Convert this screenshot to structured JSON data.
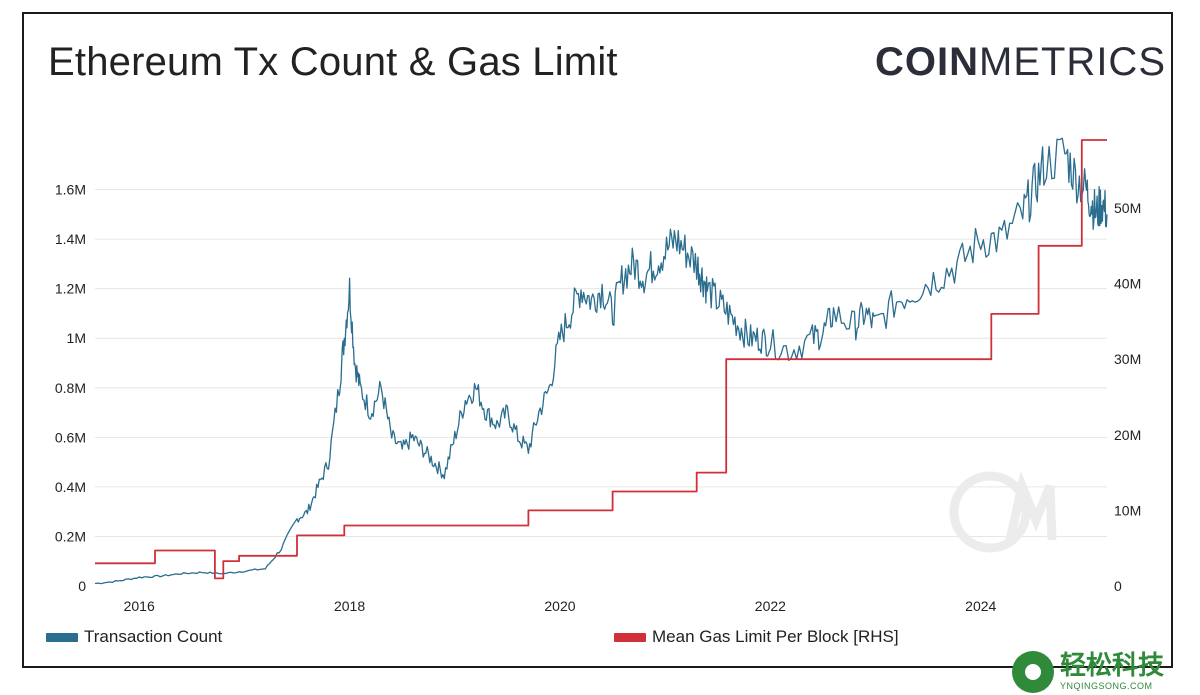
{
  "title": "Ethereum Tx Count & Gas Limit",
  "logo": {
    "bold": "COIN",
    "light": "METRICS"
  },
  "badge": {
    "main": "轻松科技",
    "sub": "YNQINGSONG.COM"
  },
  "colors": {
    "tx": "#2b6d8e",
    "gas": "#d0303a",
    "grid": "#e6e6e6",
    "text": "#222222"
  },
  "chart_data": {
    "type": "line",
    "title": "Ethereum Tx Count & Gas Limit",
    "xlabel": "",
    "ylabel": "",
    "x_ticks": [
      "2016",
      "2018",
      "2020",
      "2022",
      "2024"
    ],
    "y_left_ticks": [
      "0",
      "0.2M",
      "0.4M",
      "0.6M",
      "0.8M",
      "1M",
      "1.2M",
      "1.4M",
      "1.6M"
    ],
    "y_right_ticks": [
      "0",
      "10M",
      "20M",
      "30M",
      "40M",
      "50M"
    ],
    "ylim_left": [
      0,
      1800000
    ],
    "ylim_right": [
      0,
      59000000
    ],
    "xlim": [
      2015.58,
      2025.2
    ],
    "legend": [
      "Transaction Count",
      "Mean Gas Limit Per Block [RHS]"
    ],
    "series": [
      {
        "name": "Transaction Count",
        "axis": "left",
        "x": [
          2015.58,
          2015.8,
          2016.0,
          2016.2,
          2016.4,
          2016.6,
          2016.8,
          2017.0,
          2017.2,
          2017.35,
          2017.5,
          2017.6,
          2017.7,
          2017.8,
          2017.9,
          2017.95,
          2018.0,
          2018.05,
          2018.1,
          2018.2,
          2018.3,
          2018.4,
          2018.5,
          2018.6,
          2018.7,
          2018.8,
          2018.9,
          2019.0,
          2019.1,
          2019.2,
          2019.3,
          2019.4,
          2019.5,
          2019.6,
          2019.7,
          2019.8,
          2019.9,
          2020.0,
          2020.1,
          2020.2,
          2020.3,
          2020.4,
          2020.5,
          2020.6,
          2020.7,
          2020.8,
          2020.9,
          2021.0,
          2021.1,
          2021.2,
          2021.3,
          2021.35,
          2021.4,
          2021.5,
          2021.6,
          2021.7,
          2021.8,
          2021.9,
          2022.0,
          2022.2,
          2022.4,
          2022.5,
          2022.6,
          2022.8,
          2022.9,
          2023.0,
          2023.2,
          2023.4,
          2023.6,
          2023.8,
          2024.0,
          2024.2,
          2024.4,
          2024.5,
          2024.6,
          2024.8,
          2024.9,
          2025.0,
          2025.05,
          2025.1,
          2025.15,
          2025.2
        ],
        "values": [
          10000,
          20000,
          35000,
          40000,
          50000,
          55000,
          50000,
          60000,
          70000,
          150000,
          270000,
          300000,
          400000,
          500000,
          800000,
          1000000,
          1200000,
          900000,
          800000,
          700000,
          800000,
          600000,
          550000,
          600000,
          550000,
          500000,
          450000,
          600000,
          750000,
          800000,
          700000,
          650000,
          700000,
          600000,
          550000,
          700000,
          800000,
          1000000,
          1100000,
          1200000,
          1150000,
          1200000,
          1100000,
          1250000,
          1300000,
          1250000,
          1300000,
          1350000,
          1400000,
          1350000,
          1300000,
          1250000,
          1200000,
          1150000,
          1100000,
          1050000,
          1000000,
          1000000,
          980000,
          950000,
          1000000,
          1020000,
          1100000,
          1050000,
          1100000,
          1050000,
          1150000,
          1200000,
          1250000,
          1300000,
          1400000,
          1400000,
          1500000,
          1600000,
          1700000,
          1750000,
          1650000,
          1600000,
          1550000,
          1500000,
          1550000,
          1500000
        ]
      },
      {
        "name": "Mean Gas Limit Per Block [RHS]",
        "axis": "right",
        "x": [
          2015.58,
          2016.15,
          2016.15,
          2016.72,
          2016.72,
          2016.8,
          2016.8,
          2016.95,
          2016.95,
          2017.5,
          2017.5,
          2017.95,
          2017.95,
          2019.7,
          2019.7,
          2020.15,
          2020.15,
          2020.5,
          2020.5,
          2021.05,
          2021.05,
          2021.3,
          2021.3,
          2021.58,
          2021.58,
          2024.1,
          2024.1,
          2024.55,
          2024.55,
          2024.96,
          2024.96,
          2025.15,
          2025.15,
          2025.2
        ],
        "values": [
          3000000,
          3000000,
          4700000,
          4700000,
          1000000,
          1000000,
          3300000,
          3300000,
          4000000,
          4000000,
          6700000,
          6700000,
          8000000,
          8000000,
          10000000,
          10000000,
          10000000,
          10000000,
          12500000,
          12500000,
          12500000,
          12500000,
          15000000,
          15000000,
          30000000,
          30000000,
          36000000,
          36000000,
          45000000,
          45000000,
          59000000,
          59000000,
          59000000,
          59000000
        ]
      }
    ]
  }
}
